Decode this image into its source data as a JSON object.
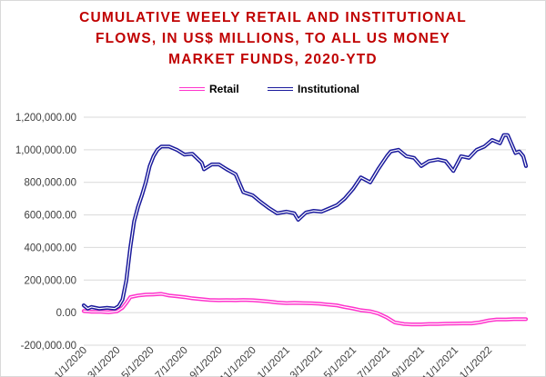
{
  "chart_data": {
    "type": "line",
    "title": "CUMULATIVE WEELY RETAIL AND INSTITUTIONAL FLOWS, IN US$ MILLIONS, TO ALL US MONEY MARKET FUNDS, 2020-YTD",
    "title_lines": [
      "CUMULATIVE WEELY RETAIL AND INSTITUTIONAL",
      "FLOWS, IN US$ MILLIONS, TO ALL US MONEY",
      "MARKET FUNDS, 2020-YTD"
    ],
    "xlabel": "",
    "ylabel": "",
    "ylim": [
      -200000,
      1200000
    ],
    "yticks": [
      -200000,
      0,
      200000,
      400000,
      600000,
      800000,
      1000000,
      1200000
    ],
    "ytick_labels": [
      "-200,000.00",
      "0.00",
      "200,000.00",
      "400,000.00",
      "600,000.00",
      "800,000.00",
      "1,000,000.00",
      "1,200,000.00"
    ],
    "xlim": [
      "2020-01-01",
      "2022-03-09"
    ],
    "xticks": [
      "2020-01-01",
      "2020-03-01",
      "2020-05-01",
      "2020-07-01",
      "2020-09-01",
      "2020-11-01",
      "2021-01-01",
      "2021-03-01",
      "2021-05-01",
      "2021-07-01",
      "2021-09-01",
      "2021-11-01",
      "2022-01-01"
    ],
    "xtick_labels": [
      "1/1/2020",
      "3/1/2020",
      "5/1/2020",
      "7/1/2020",
      "9/1/2020",
      "11/1/2020",
      "1/1/2021",
      "3/1/2021",
      "5/1/2021",
      "7/1/2021",
      "9/1/2021",
      "11/1/2021",
      "1/1/2022"
    ],
    "grid": "horizontal",
    "legend_position": "top-center",
    "colors": {
      "retail": "#ff33cc",
      "institutional": "#1a1a9c",
      "title": "#c00000",
      "grid": "#d9d9d9"
    },
    "series": [
      {
        "name": "Retail",
        "points": [
          [
            "2020-01-01",
            10000
          ],
          [
            "2020-01-15",
            5000
          ],
          [
            "2020-02-01",
            5000
          ],
          [
            "2020-02-15",
            3000
          ],
          [
            "2020-03-01",
            8000
          ],
          [
            "2020-03-11",
            30000
          ],
          [
            "2020-03-18",
            60000
          ],
          [
            "2020-03-25",
            95000
          ],
          [
            "2020-04-08",
            105000
          ],
          [
            "2020-04-22",
            110000
          ],
          [
            "2020-05-06",
            112000
          ],
          [
            "2020-05-20",
            115000
          ],
          [
            "2020-06-03",
            105000
          ],
          [
            "2020-06-17",
            100000
          ],
          [
            "2020-07-01",
            95000
          ],
          [
            "2020-07-15",
            88000
          ],
          [
            "2020-08-01",
            82000
          ],
          [
            "2020-08-15",
            78000
          ],
          [
            "2020-09-01",
            76000
          ],
          [
            "2020-09-15",
            77000
          ],
          [
            "2020-10-01",
            76000
          ],
          [
            "2020-10-15",
            78000
          ],
          [
            "2020-11-01",
            76000
          ],
          [
            "2020-11-15",
            73000
          ],
          [
            "2020-12-01",
            68000
          ],
          [
            "2020-12-15",
            62000
          ],
          [
            "2021-01-01",
            58000
          ],
          [
            "2021-01-15",
            60000
          ],
          [
            "2021-02-01",
            58000
          ],
          [
            "2021-02-15",
            57000
          ],
          [
            "2021-03-01",
            55000
          ],
          [
            "2021-03-15",
            50000
          ],
          [
            "2021-04-01",
            45000
          ],
          [
            "2021-04-15",
            35000
          ],
          [
            "2021-05-01",
            25000
          ],
          [
            "2021-05-15",
            15000
          ],
          [
            "2021-06-01",
            8000
          ],
          [
            "2021-06-15",
            -5000
          ],
          [
            "2021-07-01",
            -30000
          ],
          [
            "2021-07-15",
            -60000
          ],
          [
            "2021-08-01",
            -70000
          ],
          [
            "2021-08-15",
            -72000
          ],
          [
            "2021-09-01",
            -72000
          ],
          [
            "2021-09-15",
            -70000
          ],
          [
            "2021-10-01",
            -70000
          ],
          [
            "2021-10-15",
            -68000
          ],
          [
            "2021-11-01",
            -67000
          ],
          [
            "2021-11-15",
            -66000
          ],
          [
            "2021-12-01",
            -66000
          ],
          [
            "2021-12-15",
            -60000
          ],
          [
            "2022-01-01",
            -48000
          ],
          [
            "2022-01-15",
            -42000
          ],
          [
            "2022-02-01",
            -42000
          ],
          [
            "2022-02-15",
            -40000
          ],
          [
            "2022-03-09",
            -40000
          ]
        ]
      },
      {
        "name": "Institutional",
        "points": [
          [
            "2020-01-01",
            45000
          ],
          [
            "2020-01-08",
            25000
          ],
          [
            "2020-01-15",
            35000
          ],
          [
            "2020-01-29",
            25000
          ],
          [
            "2020-02-12",
            30000
          ],
          [
            "2020-02-26",
            25000
          ],
          [
            "2020-03-04",
            40000
          ],
          [
            "2020-03-11",
            80000
          ],
          [
            "2020-03-18",
            200000
          ],
          [
            "2020-03-25",
            400000
          ],
          [
            "2020-04-01",
            560000
          ],
          [
            "2020-04-08",
            650000
          ],
          [
            "2020-04-15",
            720000
          ],
          [
            "2020-04-22",
            800000
          ],
          [
            "2020-04-29",
            900000
          ],
          [
            "2020-05-06",
            960000
          ],
          [
            "2020-05-13",
            1000000
          ],
          [
            "2020-05-20",
            1020000
          ],
          [
            "2020-06-03",
            1020000
          ],
          [
            "2020-06-17",
            1000000
          ],
          [
            "2020-07-01",
            970000
          ],
          [
            "2020-07-15",
            975000
          ],
          [
            "2020-08-01",
            920000
          ],
          [
            "2020-08-05",
            880000
          ],
          [
            "2020-08-19",
            910000
          ],
          [
            "2020-09-01",
            910000
          ],
          [
            "2020-09-15",
            880000
          ],
          [
            "2020-10-01",
            850000
          ],
          [
            "2020-10-15",
            740000
          ],
          [
            "2020-11-01",
            720000
          ],
          [
            "2020-11-15",
            680000
          ],
          [
            "2020-12-01",
            640000
          ],
          [
            "2020-12-15",
            610000
          ],
          [
            "2021-01-01",
            620000
          ],
          [
            "2021-01-15",
            610000
          ],
          [
            "2021-01-22",
            570000
          ],
          [
            "2021-02-05",
            615000
          ],
          [
            "2021-02-19",
            625000
          ],
          [
            "2021-03-05",
            620000
          ],
          [
            "2021-03-19",
            640000
          ],
          [
            "2021-04-02",
            660000
          ],
          [
            "2021-04-16",
            700000
          ],
          [
            "2021-05-01",
            760000
          ],
          [
            "2021-05-15",
            830000
          ],
          [
            "2021-06-01",
            800000
          ],
          [
            "2021-06-15",
            880000
          ],
          [
            "2021-07-01",
            960000
          ],
          [
            "2021-07-08",
            990000
          ],
          [
            "2021-07-22",
            1000000
          ],
          [
            "2021-08-05",
            960000
          ],
          [
            "2021-08-19",
            950000
          ],
          [
            "2021-09-01",
            900000
          ],
          [
            "2021-09-15",
            930000
          ],
          [
            "2021-10-01",
            940000
          ],
          [
            "2021-10-15",
            930000
          ],
          [
            "2021-10-29",
            870000
          ],
          [
            "2021-11-12",
            960000
          ],
          [
            "2021-11-26",
            950000
          ],
          [
            "2021-12-10",
            1000000
          ],
          [
            "2021-12-24",
            1020000
          ],
          [
            "2022-01-07",
            1060000
          ],
          [
            "2022-01-21",
            1040000
          ],
          [
            "2022-01-28",
            1090000
          ],
          [
            "2022-02-04",
            1090000
          ],
          [
            "2022-02-18",
            980000
          ],
          [
            "2022-02-25",
            990000
          ],
          [
            "2022-03-04",
            960000
          ],
          [
            "2022-03-09",
            900000
          ]
        ]
      }
    ]
  }
}
